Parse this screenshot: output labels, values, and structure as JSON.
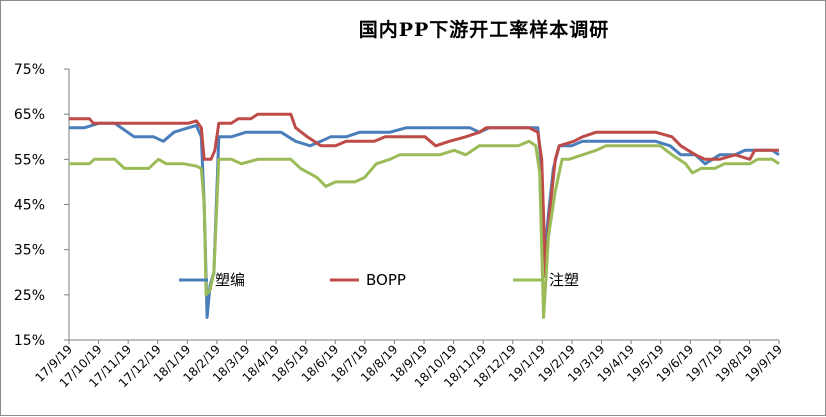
{
  "chart_data": {
    "type": "line",
    "title": "国内PP下游开工率样本调研",
    "xlabel": "",
    "ylabel": "",
    "ylim": [
      0.15,
      0.75
    ],
    "yticks": [
      "15%",
      "25%",
      "35%",
      "45%",
      "55%",
      "65%",
      "75%"
    ],
    "x_range": [
      "2017-09-19",
      "2019-09-19"
    ],
    "xticks": [
      "17/9/19",
      "17/10/19",
      "17/11/19",
      "17/12/19",
      "18/1/19",
      "18/2/19",
      "18/3/19",
      "18/4/19",
      "18/5/19",
      "18/6/19",
      "18/7/19",
      "18/8/19",
      "18/9/19",
      "18/10/19",
      "18/11/19",
      "18/12/19",
      "19/1/19",
      "19/2/19",
      "19/3/19",
      "19/4/19",
      "19/5/19",
      "19/6/19",
      "19/7/19",
      "19/8/19",
      "19/9/19"
    ],
    "grid": false,
    "legend": "center",
    "series": [
      {
        "name": "塑编",
        "color": "#4a7ebb",
        "points": [
          [
            "2017-09-19",
            0.62
          ],
          [
            "2017-10-05",
            0.62
          ],
          [
            "2017-10-20",
            0.63
          ],
          [
            "2017-11-05",
            0.63
          ],
          [
            "2017-11-25",
            0.6
          ],
          [
            "2017-12-15",
            0.6
          ],
          [
            "2017-12-25",
            0.59
          ],
          [
            "2018-01-05",
            0.61
          ],
          [
            "2018-01-20",
            0.62
          ],
          [
            "2018-01-28",
            0.625
          ],
          [
            "2018-02-02",
            0.6
          ],
          [
            "2018-02-05",
            0.45
          ],
          [
            "2018-02-08",
            0.2
          ],
          [
            "2018-02-11",
            0.27
          ],
          [
            "2018-02-15",
            0.3
          ],
          [
            "2018-02-20",
            0.6
          ],
          [
            "2018-03-05",
            0.6
          ],
          [
            "2018-03-20",
            0.61
          ],
          [
            "2018-04-10",
            0.61
          ],
          [
            "2018-04-25",
            0.61
          ],
          [
            "2018-05-10",
            0.59
          ],
          [
            "2018-05-25",
            0.58
          ],
          [
            "2018-06-05",
            0.59
          ],
          [
            "2018-06-15",
            0.6
          ],
          [
            "2018-07-01",
            0.6
          ],
          [
            "2018-07-15",
            0.61
          ],
          [
            "2018-08-15",
            0.61
          ],
          [
            "2018-09-01",
            0.62
          ],
          [
            "2018-10-01",
            0.62
          ],
          [
            "2018-10-15",
            0.62
          ],
          [
            "2018-11-05",
            0.62
          ],
          [
            "2018-11-15",
            0.61
          ],
          [
            "2018-11-25",
            0.62
          ],
          [
            "2018-12-30",
            0.62
          ],
          [
            "2019-01-14",
            0.62
          ],
          [
            "2019-01-17",
            0.55
          ],
          [
            "2019-01-21",
            0.33
          ],
          [
            "2019-01-25",
            0.43
          ],
          [
            "2019-01-30",
            0.53
          ],
          [
            "2019-02-05",
            0.58
          ],
          [
            "2019-02-18",
            0.58
          ],
          [
            "2019-03-01",
            0.59
          ],
          [
            "2019-04-15",
            0.59
          ],
          [
            "2019-05-15",
            0.59
          ],
          [
            "2019-05-30",
            0.58
          ],
          [
            "2019-06-10",
            0.56
          ],
          [
            "2019-06-25",
            0.56
          ],
          [
            "2019-07-05",
            0.54
          ],
          [
            "2019-07-20",
            0.56
          ],
          [
            "2019-08-05",
            0.56
          ],
          [
            "2019-08-15",
            0.57
          ],
          [
            "2019-09-12",
            0.57
          ],
          [
            "2019-09-19",
            0.56
          ]
        ]
      },
      {
        "name": "BOPP",
        "color": "#be4b48",
        "points": [
          [
            "2017-09-19",
            0.64
          ],
          [
            "2017-10-10",
            0.64
          ],
          [
            "2017-10-14",
            0.63
          ],
          [
            "2018-01-20",
            0.63
          ],
          [
            "2018-01-28",
            0.635
          ],
          [
            "2018-02-02",
            0.62
          ],
          [
            "2018-02-05",
            0.55
          ],
          [
            "2018-02-12",
            0.55
          ],
          [
            "2018-02-16",
            0.57
          ],
          [
            "2018-02-20",
            0.63
          ],
          [
            "2018-03-05",
            0.63
          ],
          [
            "2018-03-12",
            0.64
          ],
          [
            "2018-03-25",
            0.64
          ],
          [
            "2018-04-01",
            0.65
          ],
          [
            "2018-05-05",
            0.65
          ],
          [
            "2018-05-10",
            0.62
          ],
          [
            "2018-05-22",
            0.6
          ],
          [
            "2018-06-05",
            0.58
          ],
          [
            "2018-06-20",
            0.58
          ],
          [
            "2018-07-01",
            0.59
          ],
          [
            "2018-07-30",
            0.59
          ],
          [
            "2018-08-10",
            0.6
          ],
          [
            "2018-09-20",
            0.6
          ],
          [
            "2018-10-01",
            0.58
          ],
          [
            "2018-10-15",
            0.59
          ],
          [
            "2018-11-01",
            0.6
          ],
          [
            "2018-11-15",
            0.61
          ],
          [
            "2018-11-22",
            0.62
          ],
          [
            "2019-01-05",
            0.62
          ],
          [
            "2019-01-14",
            0.61
          ],
          [
            "2019-01-18",
            0.55
          ],
          [
            "2019-01-22",
            0.29
          ],
          [
            "2019-01-26",
            0.43
          ],
          [
            "2019-02-01",
            0.55
          ],
          [
            "2019-02-05",
            0.58
          ],
          [
            "2019-02-20",
            0.59
          ],
          [
            "2019-03-01",
            0.6
          ],
          [
            "2019-03-15",
            0.61
          ],
          [
            "2019-05-15",
            0.61
          ],
          [
            "2019-06-01",
            0.6
          ],
          [
            "2019-06-10",
            0.58
          ],
          [
            "2019-06-25",
            0.56
          ],
          [
            "2019-07-05",
            0.55
          ],
          [
            "2019-07-20",
            0.55
          ],
          [
            "2019-08-05",
            0.56
          ],
          [
            "2019-08-20",
            0.55
          ],
          [
            "2019-08-25",
            0.57
          ],
          [
            "2019-09-19",
            0.57
          ]
        ]
      },
      {
        "name": "注塑",
        "color": "#9bbb59",
        "points": [
          [
            "2017-09-19",
            0.54
          ],
          [
            "2017-10-10",
            0.54
          ],
          [
            "2017-10-15",
            0.55
          ],
          [
            "2017-11-05",
            0.55
          ],
          [
            "2017-11-15",
            0.53
          ],
          [
            "2017-12-10",
            0.53
          ],
          [
            "2017-12-20",
            0.55
          ],
          [
            "2017-12-28",
            0.54
          ],
          [
            "2018-01-15",
            0.54
          ],
          [
            "2018-01-28",
            0.535
          ],
          [
            "2018-02-02",
            0.53
          ],
          [
            "2018-02-05",
            0.45
          ],
          [
            "2018-02-07",
            0.25
          ],
          [
            "2018-02-11",
            0.26
          ],
          [
            "2018-02-15",
            0.3
          ],
          [
            "2018-02-20",
            0.55
          ],
          [
            "2018-03-05",
            0.55
          ],
          [
            "2018-03-15",
            0.54
          ],
          [
            "2018-04-01",
            0.55
          ],
          [
            "2018-05-05",
            0.55
          ],
          [
            "2018-05-15",
            0.53
          ],
          [
            "2018-06-01",
            0.51
          ],
          [
            "2018-06-10",
            0.49
          ],
          [
            "2018-06-20",
            0.5
          ],
          [
            "2018-07-10",
            0.5
          ],
          [
            "2018-07-20",
            0.51
          ],
          [
            "2018-08-01",
            0.54
          ],
          [
            "2018-08-15",
            0.55
          ],
          [
            "2018-08-25",
            0.56
          ],
          [
            "2018-10-05",
            0.56
          ],
          [
            "2018-10-20",
            0.57
          ],
          [
            "2018-11-01",
            0.56
          ],
          [
            "2018-11-15",
            0.58
          ],
          [
            "2018-12-25",
            0.58
          ],
          [
            "2019-01-05",
            0.59
          ],
          [
            "2019-01-12",
            0.58
          ],
          [
            "2019-01-16",
            0.52
          ],
          [
            "2019-01-20",
            0.2
          ],
          [
            "2019-01-25",
            0.38
          ],
          [
            "2019-02-01",
            0.48
          ],
          [
            "2019-02-08",
            0.55
          ],
          [
            "2019-02-15",
            0.55
          ],
          [
            "2019-03-01",
            0.56
          ],
          [
            "2019-03-15",
            0.57
          ],
          [
            "2019-03-25",
            0.58
          ],
          [
            "2019-05-20",
            0.58
          ],
          [
            "2019-06-01",
            0.56
          ],
          [
            "2019-06-15",
            0.54
          ],
          [
            "2019-06-22",
            0.52
          ],
          [
            "2019-07-01",
            0.53
          ],
          [
            "2019-07-15",
            0.53
          ],
          [
            "2019-07-25",
            0.54
          ],
          [
            "2019-08-20",
            0.54
          ],
          [
            "2019-08-28",
            0.55
          ],
          [
            "2019-09-12",
            0.55
          ],
          [
            "2019-09-19",
            0.54
          ]
        ]
      }
    ]
  }
}
